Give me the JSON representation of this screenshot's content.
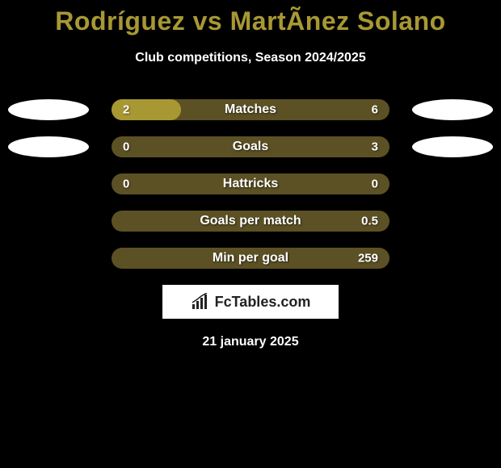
{
  "title": "Rodríguez vs MartÃ­nez Solano",
  "subtitle": "Club competitions, Season 2024/2025",
  "bar_bg_color": "#5c5124",
  "bar_fill_color": "#a89833",
  "rows": [
    {
      "label": "Matches",
      "left_value": "2",
      "right_value": "6",
      "fill_pct": 25,
      "has_markers": true
    },
    {
      "label": "Goals",
      "left_value": "0",
      "right_value": "3",
      "fill_pct": 0,
      "has_markers": true
    },
    {
      "label": "Hattricks",
      "left_value": "0",
      "right_value": "0",
      "fill_pct": 0,
      "has_markers": false
    },
    {
      "label": "Goals per match",
      "left_value": "",
      "right_value": "0.5",
      "fill_pct": 0,
      "has_markers": false
    },
    {
      "label": "Min per goal",
      "left_value": "",
      "right_value": "259",
      "fill_pct": 0,
      "has_markers": false
    }
  ],
  "logo_text": "FcTables.com",
  "date": "21 january 2025",
  "marker_color": "#ffffff",
  "background_color": "#000000",
  "title_color": "#a89833"
}
